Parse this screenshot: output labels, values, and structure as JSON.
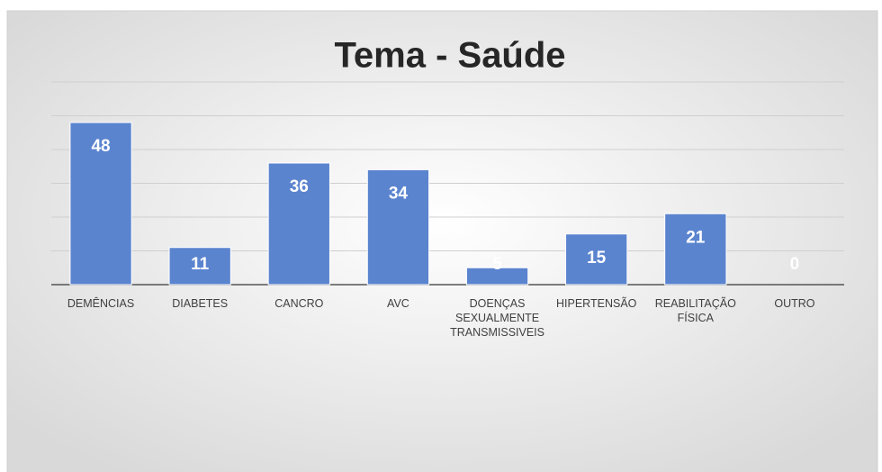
{
  "chart_data": {
    "type": "bar",
    "title": "Tema - Saúde",
    "categories": [
      "DEMÊNCIAS",
      "DIABETES",
      "CANCRO",
      "AVC",
      "DOENÇAS SEXUALMENTE TRANSMISSIVEIS",
      "HIPERTENSÃO",
      "REABILITAÇÃO FÍSICA",
      "OUTRO"
    ],
    "values": [
      48,
      11,
      36,
      34,
      5,
      15,
      21,
      0
    ],
    "color": "#5b84cf",
    "ylim": [
      0,
      60
    ],
    "yticks": [
      0,
      10,
      20,
      30,
      40,
      50,
      60
    ],
    "grid": true
  }
}
